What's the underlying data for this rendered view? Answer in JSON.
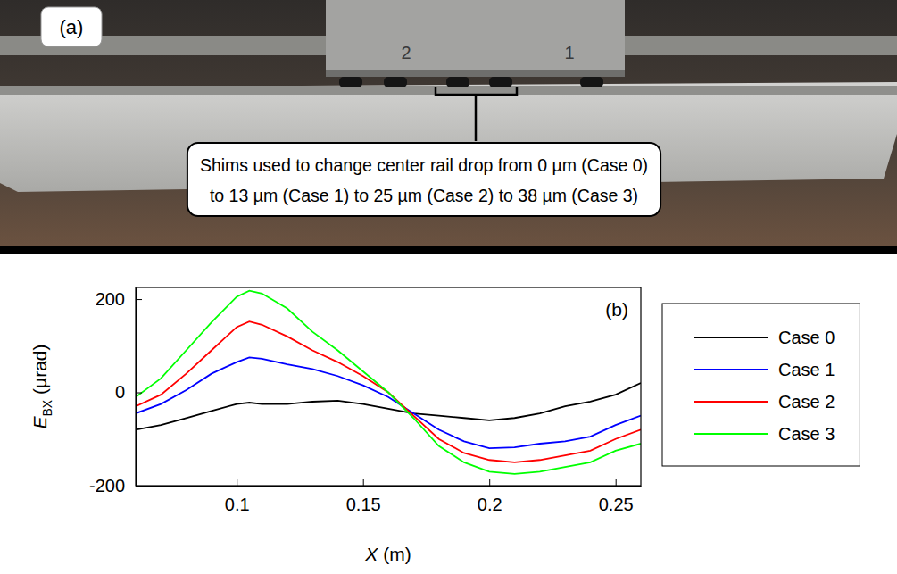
{
  "panel_a": {
    "label": "(a)",
    "stage_labels": [
      "2",
      "1"
    ],
    "callout": [
      "Shims used to change center rail drop from 0 µm (Case 0)",
      "to 13 µm (Case 1) to 25 µm (Case 2) to 38 µm (Case 3)"
    ]
  },
  "chart_data": {
    "type": "line",
    "annotation": "(b)",
    "xlabel": [
      "X",
      " (m)"
    ],
    "ylabel": [
      "E",
      "BX",
      " (µrad)"
    ],
    "x": [
      0.06,
      0.07,
      0.08,
      0.09,
      0.1,
      0.105,
      0.11,
      0.12,
      0.13,
      0.14,
      0.15,
      0.16,
      0.17,
      0.18,
      0.19,
      0.2,
      0.21,
      0.22,
      0.23,
      0.24,
      0.25,
      0.26
    ],
    "series": [
      {
        "name": "Case 0",
        "color": "#000000",
        "values": [
          -80,
          -70,
          -55,
          -40,
          -25,
          -22,
          -25,
          -25,
          -20,
          -18,
          -25,
          -35,
          -45,
          -50,
          -55,
          -60,
          -55,
          -45,
          -30,
          -20,
          -5,
          20
        ]
      },
      {
        "name": "Case 1",
        "color": "#0000ff",
        "values": [
          -45,
          -25,
          5,
          40,
          65,
          75,
          72,
          60,
          50,
          35,
          15,
          -10,
          -45,
          -80,
          -105,
          -120,
          -118,
          -110,
          -105,
          -95,
          -70,
          -50
        ]
      },
      {
        "name": "Case 2",
        "color": "#ff0000",
        "values": [
          -30,
          -5,
          40,
          90,
          140,
          152,
          145,
          120,
          90,
          65,
          35,
          0,
          -50,
          -100,
          -130,
          -145,
          -150,
          -145,
          -135,
          -125,
          -100,
          -80
        ]
      },
      {
        "name": "Case 3",
        "color": "#00ff00",
        "values": [
          -10,
          30,
          90,
          150,
          205,
          218,
          212,
          180,
          130,
          90,
          45,
          0,
          -55,
          -115,
          -150,
          -170,
          -175,
          -170,
          -160,
          -150,
          -125,
          -110
        ]
      }
    ],
    "xlim": [
      0.06,
      0.26
    ],
    "xticks": [
      0.1,
      0.15,
      0.2,
      0.25
    ],
    "ylim": [
      -200,
      225
    ],
    "yticks": [
      -200,
      0,
      200
    ],
    "legend": "right"
  }
}
